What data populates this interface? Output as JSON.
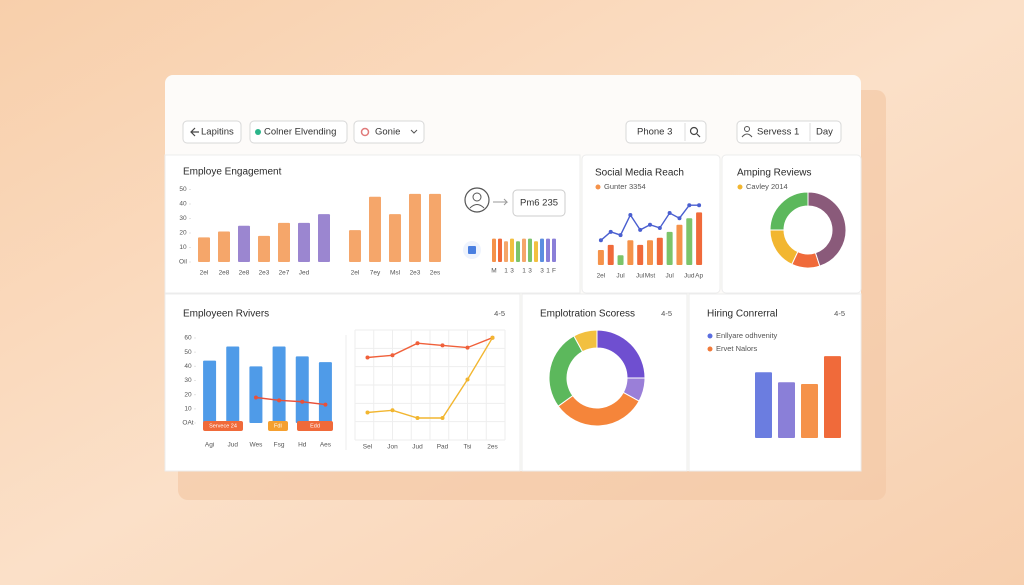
{
  "toolbar": {
    "back": "Lapitins",
    "filter": "Colner Elvending",
    "menu": "Gonie",
    "search": "Phone 3",
    "services": "Servess 1",
    "period": "Day"
  },
  "chart_data": [
    {
      "type": "bar",
      "title": "Employe Engagement",
      "categories": [
        "2el",
        "2e8",
        "2e8",
        "2e3",
        "2e7",
        "Jed",
        null,
        "2el",
        "7ey",
        "Msl",
        "2e3",
        "2es"
      ],
      "series": [
        {
          "kind": "bar",
          "colors": [
            "#f5a66a",
            "#f5a66a",
            "#9b86d0",
            "#f5a66a",
            "#f5a66a",
            "#9b86d0",
            "#9b86d0",
            "#f5a66a",
            "#f5a66a",
            "#f5a66a",
            "#f5a66a",
            "#f5a66a"
          ],
          "values": [
            17,
            21,
            25,
            18,
            27,
            27,
            33,
            22,
            45,
            33,
            47,
            47
          ]
        }
      ],
      "ylim": [
        0,
        60
      ],
      "yticks": [
        {
          "value": 0,
          "label": "Oil"
        },
        10,
        20,
        30,
        40,
        50
      ]
    },
    {
      "type": "bar",
      "annotation": "Pm6 235",
      "categories": [
        "M",
        null,
        "1",
        "3",
        null,
        "1",
        "3",
        null,
        "3",
        "1",
        "F"
      ],
      "series": [
        {
          "kind": "bar",
          "colors": [
            "#f5924a",
            "#f06a3a",
            "#f5a66a",
            "#f2c040",
            "#7cc46a",
            "#f5a66a",
            "#7cc46a",
            "#f2c040",
            "#5b8ee0",
            "#8a7fd8",
            "#8a7fd8"
          ],
          "values": [
            9,
            9,
            8,
            9,
            8,
            9,
            9,
            8,
            9,
            9,
            9
          ]
        }
      ],
      "ylim": [
        0,
        10
      ]
    },
    {
      "type": "combo",
      "title": "Social Media Reach",
      "legend": [
        {
          "name": "Gunter 3354",
          "color": "#f5924a"
        }
      ],
      "categories": [
        "2el",
        null,
        "Jul",
        null,
        "Jul",
        "Mst",
        null,
        "Jul",
        null,
        "Jud",
        "Ap"
      ],
      "series": [
        {
          "kind": "bar",
          "colors": [
            "#f5924a",
            "#f06a3a",
            "#7cc46a",
            "#f5924a",
            "#f06a3a",
            "#f5924a",
            "#f06a3a",
            "#7cc46a",
            "#f5924a",
            "#7cc46a",
            "#f06a3a"
          ],
          "values": [
            2.3,
            3.1,
            1.5,
            3.8,
            3.1,
            3.8,
            4.2,
            5.1,
            6.2,
            7.2,
            8.1
          ]
        },
        {
          "kind": "line",
          "color": "#4a5fd0",
          "values": [
            3.8,
            5.1,
            4.6,
            7.7,
            5.4,
            6.2,
            5.7,
            8.0,
            7.2,
            9.2,
            9.2
          ]
        }
      ],
      "ylim": [
        0,
        10
      ]
    },
    {
      "type": "donut",
      "title": "Amping Reviews",
      "legend": [
        {
          "name": "Cavley 2014",
          "color": "#f2b630"
        }
      ],
      "values": [
        45,
        12,
        18,
        25
      ],
      "colors": [
        "#8a5a7a",
        "#f06a3a",
        "#f2b630",
        "#5cb85c"
      ]
    },
    {
      "type": "combo",
      "title": "Employeen Rvivers",
      "badge": "4-5",
      "categories": [
        "Agi",
        "Jud",
        "Wes",
        "Fsg",
        "Hd",
        "Aes"
      ],
      "series": [
        {
          "kind": "bar",
          "colors": [
            "#4f9be8",
            "#4f9be8",
            "#4f9be8",
            "#4f9be8",
            "#4f9be8",
            "#4f9be8"
          ],
          "values": [
            44,
            54,
            40,
            54,
            47,
            43
          ]
        },
        {
          "kind": "line",
          "color": "#e8513a",
          "values": [
            null,
            null,
            18,
            16,
            15,
            13
          ]
        }
      ],
      "annotations": [
        {
          "text": "Servece 24",
          "color": "#f06a3a"
        },
        {
          "text": "FdI",
          "color": "#f5a030"
        },
        {
          "text": "Edd",
          "color": "#f06a3a"
        }
      ],
      "ylim": [
        0,
        60
      ],
      "yticks": [
        {
          "value": 0,
          "label": "OAt"
        },
        10,
        20,
        30,
        40,
        50,
        60
      ]
    },
    {
      "type": "line",
      "grid": true,
      "categories": [
        "Sel",
        "Jon",
        "Jud",
        "Pad",
        "Tsi",
        "2es"
      ],
      "series": [
        {
          "kind": "line",
          "color": "#f0603a",
          "values": [
            7.5,
            7.7,
            8.8,
            8.6,
            8.4,
            9.3
          ]
        },
        {
          "kind": "line",
          "color": "#f2b630",
          "values": [
            2.5,
            2.7,
            2.0,
            2.0,
            5.5,
            9.3
          ]
        }
      ],
      "ylim": [
        0,
        10
      ]
    },
    {
      "type": "donut",
      "title": "Emplotration Scoress",
      "badge": "4-5",
      "values": [
        25,
        8,
        32,
        27,
        8
      ],
      "colors": [
        "#6f4fd0",
        "#9a7fd8",
        "#f5853a",
        "#5cb85c",
        "#f2c040"
      ]
    },
    {
      "type": "bar",
      "title": "Hiring Conrerral",
      "badge": "4-5",
      "legend": [
        {
          "name": "Enllyare odhvenity",
          "color": "#5b6ee0"
        },
        {
          "name": "Ervet Nalors",
          "color": "#f07a3a"
        }
      ],
      "categories": [
        null,
        null,
        null,
        null
      ],
      "series": [
        {
          "kind": "bar",
          "colors": [
            "#6b7de0",
            "#8a7fd8",
            "#f5924a",
            "#f06a3a"
          ],
          "values": [
            7.3,
            6.2,
            6.0,
            9.1
          ]
        }
      ],
      "ylim": [
        0,
        10
      ]
    }
  ]
}
